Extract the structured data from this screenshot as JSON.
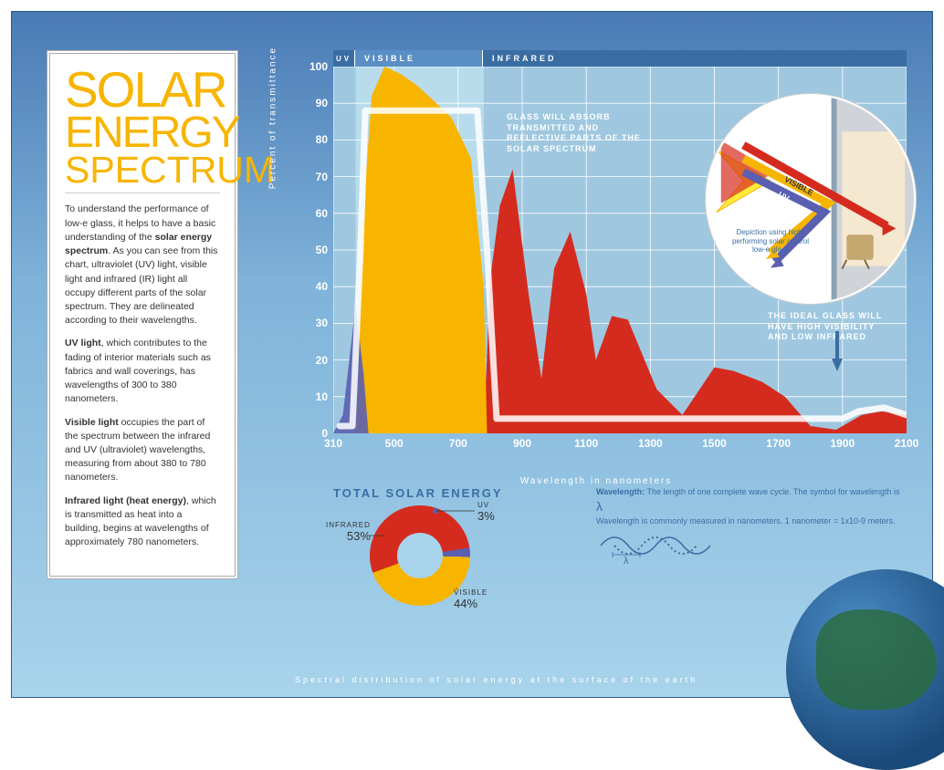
{
  "title": {
    "line1": "SOLAR",
    "line2": "ENERGY",
    "line3": "SPECTRUM"
  },
  "paragraphs": {
    "p1a": "To understand the performance of low-e glass, it helps to have a basic understanding of the ",
    "p1b": "solar energy spectrum",
    "p1c": ". As you can see from this chart, ultraviolet (UV) light, visible light and infrared (IR) light all occupy different parts of the solar spectrum. They are delineated according to their wavelengths.",
    "p2a": "UV light",
    "p2b": ", which contributes to the fading of interior materials such as fabrics and wall coverings, has wavelengths of 300 to 380 nanometers.",
    "p3a": "Visible light",
    "p3b": " occupies the part of the spectrum between the infrared and UV (ultraviolet) wavelengths, measuring from about 380 to 780 nanometers.",
    "p4a": "Infrared light (heat energy)",
    "p4b": ", which is transmitted as heat into a building, begins at wavelengths of approximately 780 nanometers."
  },
  "bands": {
    "uv": {
      "label": "UV",
      "start": 310,
      "end": 380,
      "color": "#5a5fb0"
    },
    "visible": {
      "label": "VISIBLE",
      "start": 380,
      "end": 780,
      "color": "#f7b500"
    },
    "infrared": {
      "label": "INFRARED",
      "start": 780,
      "end": 2100,
      "color": "#d52b1e"
    }
  },
  "chart": {
    "type": "area",
    "ylabel": "Percent of transmittance",
    "xlabel": "Wavelength in nanometers",
    "xlim": [
      310,
      2100
    ],
    "ylim": [
      0,
      100
    ],
    "xticks": [
      310,
      500,
      700,
      900,
      1100,
      1300,
      1500,
      1700,
      1900,
      2100
    ],
    "yticks": [
      0,
      10,
      20,
      30,
      40,
      50,
      60,
      70,
      80,
      90,
      100
    ],
    "grid_color": "#ffffff",
    "background": "#9fc8e0",
    "series": {
      "uv": {
        "color": "#5a5fb0",
        "opacity": 0.9,
        "points": [
          [
            310,
            0
          ],
          [
            340,
            5
          ],
          [
            360,
            20
          ],
          [
            380,
            35
          ],
          [
            405,
            16
          ],
          [
            420,
            0
          ]
        ]
      },
      "visible": {
        "color": "#f7b500",
        "opacity": 1,
        "points": [
          [
            380,
            0
          ],
          [
            400,
            55
          ],
          [
            430,
            92
          ],
          [
            470,
            100
          ],
          [
            520,
            98
          ],
          [
            570,
            95
          ],
          [
            620,
            91
          ],
          [
            680,
            86
          ],
          [
            740,
            75
          ],
          [
            780,
            40
          ],
          [
            790,
            0
          ]
        ]
      },
      "infrared": {
        "color": "#d52b1e",
        "opacity": 1,
        "points": [
          [
            780,
            0
          ],
          [
            800,
            42
          ],
          [
            830,
            62
          ],
          [
            870,
            72
          ],
          [
            920,
            38
          ],
          [
            960,
            15
          ],
          [
            1000,
            45
          ],
          [
            1050,
            55
          ],
          [
            1100,
            38
          ],
          [
            1130,
            20
          ],
          [
            1180,
            32
          ],
          [
            1230,
            31
          ],
          [
            1320,
            12
          ],
          [
            1400,
            5
          ],
          [
            1500,
            18
          ],
          [
            1560,
            17
          ],
          [
            1650,
            14
          ],
          [
            1720,
            10
          ],
          [
            1800,
            2
          ],
          [
            1880,
            1
          ],
          [
            1960,
            5
          ],
          [
            2020,
            6
          ],
          [
            2100,
            5
          ]
        ]
      },
      "ideal": {
        "color": "#ffffff",
        "width": 7,
        "opacity": 0.85,
        "points": [
          [
            330,
            2
          ],
          [
            370,
            2
          ],
          [
            395,
            50
          ],
          [
            410,
            88
          ],
          [
            760,
            88
          ],
          [
            790,
            50
          ],
          [
            820,
            4
          ],
          [
            1900,
            4
          ],
          [
            1950,
            6
          ],
          [
            2030,
            7
          ],
          [
            2100,
            5
          ]
        ]
      }
    },
    "annot1": "GLASS WILL ABSORB TRANSMITTED AND REFLECTIVE PARTS OF THE SOLAR SPECTRUM",
    "annot2": "THE IDEAL GLASS WILL HAVE HIGH VISIBILITY AND LOW INFRARED"
  },
  "inset": {
    "caption": "Depiction using high-performing solar control low-e glass",
    "labels": {
      "infrared": "INFRARED",
      "visible": "VISIBLE",
      "uv": "UV"
    },
    "colors": {
      "infrared": "#d52b1e",
      "visible": "#f7b500",
      "uv": "#5a5fb0",
      "wall": "#d0d4d8",
      "interior": "#f5e8d0"
    }
  },
  "donut": {
    "title": "TOTAL SOLAR ENERGY",
    "slices": [
      {
        "name": "INFRARED",
        "pct": 53,
        "color": "#d52b1e"
      },
      {
        "name": "VISIBLE",
        "pct": 44,
        "color": "#f7b500"
      },
      {
        "name": "UV",
        "pct": 3,
        "color": "#5a5fb0"
      }
    ]
  },
  "wavelength": {
    "label": "Wavelength:",
    "text": " The length of one complete wave cycle. The symbol for wavelength is ",
    "symbol": "λ",
    "text2": "Wavelength is commonly measured in nanometers. 1 nanometer = 1x10-9 meters."
  },
  "footer": "Spectral distribution of solar energy at the surface of the earth"
}
